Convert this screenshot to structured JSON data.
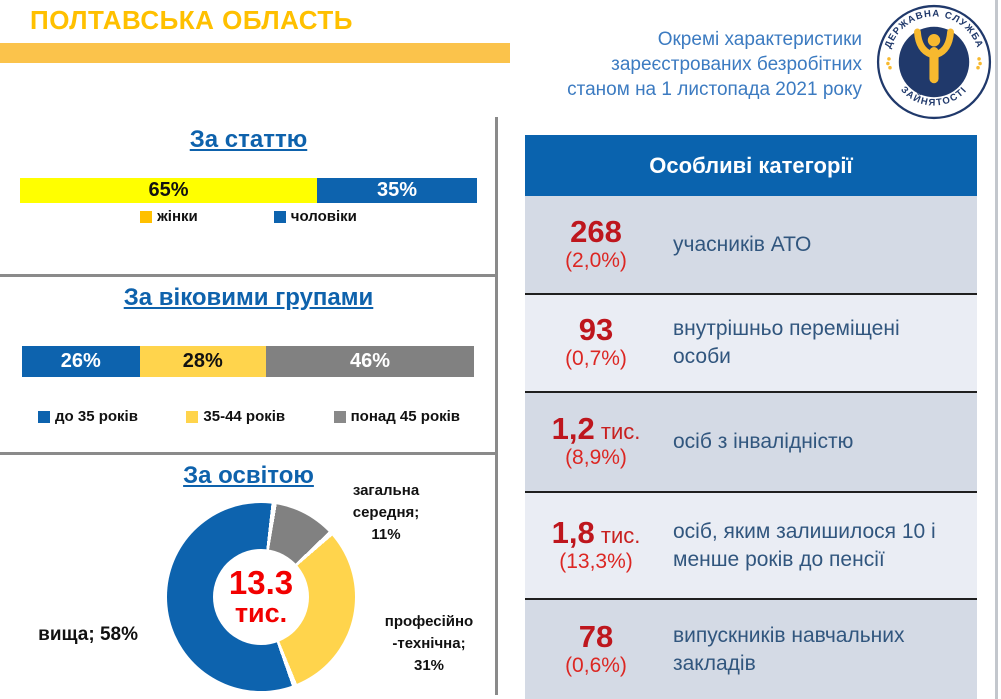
{
  "header": {
    "region_title": "ПОЛТАВСЬКА ОБЛАСТЬ",
    "subtitle_lines": [
      "Окремі характеристики",
      "зареєстрованих безробітних",
      "станом на 1 листопада 2021 року"
    ],
    "logo": {
      "top_text": "ДЕРЖАВНА СЛУЖБА",
      "bottom_text": "ЗАЙНЯТОСТІ"
    }
  },
  "colors": {
    "brand_blue": "#0D63AE",
    "gold": "#FFC000",
    "bright_yellow": "#FFFF00",
    "age_yellow": "#FFD44C",
    "gray": "#818181",
    "number_red": "#BE161D",
    "center_red": "#F20000",
    "panel_header_blue": "#0A63AE",
    "row_dark": "#D4DAE5",
    "row_light": "#EAEDF4",
    "label_navy": "#31567E"
  },
  "chart_data": [
    {
      "type": "bar",
      "title": "За статтю",
      "orientation": "horizontal-stacked",
      "unit": "%",
      "segments": [
        {
          "label": "жінки",
          "value": 65,
          "bar_label": "65%",
          "color": "#FFFF00",
          "text_color": "#111111"
        },
        {
          "label": "чоловіки",
          "value": 35,
          "bar_label": "35%",
          "color": "#0D63AE",
          "text_color": "#FFFFFF"
        }
      ],
      "legend": [
        {
          "label": "жінки",
          "color": "#FFC000"
        },
        {
          "label": "чоловіки",
          "color": "#0D63AE"
        }
      ],
      "legend_position": "bottom"
    },
    {
      "type": "bar",
      "title": "За віковими групами",
      "orientation": "horizontal-stacked",
      "unit": "%",
      "segments": [
        {
          "label": "до 35 років",
          "value": 26,
          "bar_label": "26%",
          "color": "#0D63AE",
          "text_color": "#FFFFFF"
        },
        {
          "label": "35-44 років",
          "value": 28,
          "bar_label": "28%",
          "color": "#FFD44C",
          "text_color": "#111111"
        },
        {
          "label": "понад 45 років",
          "value": 46,
          "bar_label": "46%",
          "color": "#818181",
          "text_color": "#FFFFFF"
        }
      ],
      "legend": [
        {
          "label": "до 35 років",
          "color": "#0D63AE"
        },
        {
          "label": "35-44 років",
          "color": "#FFD44C"
        },
        {
          "label": "понад 45 років",
          "color": "#898989"
        }
      ],
      "legend_position": "bottom"
    },
    {
      "type": "pie",
      "donut": true,
      "title": "За освітою",
      "unit": "%",
      "center_label": {
        "value": "13.3",
        "unit": "тис."
      },
      "segments": [
        {
          "label": "вища",
          "value": 58,
          "color": "#0D63AE"
        },
        {
          "label": "професійно-технічна",
          "value": 31,
          "color": "#FFD44C"
        },
        {
          "label": "загальна середня",
          "value": 11,
          "color": "#818181"
        }
      ],
      "draw_order_clockwise_from_top": [
        "загальна середня",
        "професійно-технічна",
        "вища"
      ],
      "callouts": [
        {
          "text": "вища; 58%"
        },
        {
          "text": "загальна\nсередня;\n11%"
        },
        {
          "text": "професійно\n-технічна;\n31%"
        }
      ]
    }
  ],
  "special_categories": {
    "header": "Особливі категорії",
    "rows": [
      {
        "value": "268",
        "unit": "",
        "pct": "(2,0%)",
        "label": "учасників АТО"
      },
      {
        "value": "93",
        "unit": "",
        "pct": "(0,7%)",
        "label": "внутрішньо переміщені особи"
      },
      {
        "value": "1,2",
        "unit": "тис.",
        "pct": "(8,9%)",
        "label": "осіб з інвалідністю"
      },
      {
        "value": "1,8",
        "unit": "тис.",
        "pct": "(13,3%)",
        "label": "осіб, яким залишилося 10 і менше років до пенсії"
      },
      {
        "value": "78",
        "unit": "",
        "pct": "(0,6%)",
        "label": "випускників навчальних закладів"
      }
    ]
  }
}
